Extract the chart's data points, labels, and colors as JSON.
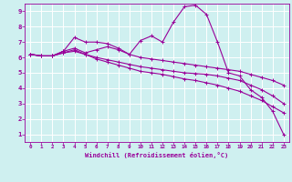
{
  "xlabel": "Windchill (Refroidissement éolien,°C)",
  "bg_color": "#cff0f0",
  "line_color": "#990099",
  "grid_color": "#ffffff",
  "xlim": [
    -0.5,
    23.5
  ],
  "ylim": [
    0.5,
    9.5
  ],
  "xticks": [
    0,
    1,
    2,
    3,
    4,
    5,
    6,
    7,
    8,
    9,
    10,
    11,
    12,
    13,
    14,
    15,
    16,
    17,
    18,
    19,
    20,
    21,
    22,
    23
  ],
  "yticks": [
    1,
    2,
    3,
    4,
    5,
    6,
    7,
    8,
    9
  ],
  "curve1_x": [
    0,
    1,
    2,
    3,
    4,
    5,
    6,
    7,
    8,
    9,
    10,
    11,
    12,
    13,
    14,
    15,
    16,
    17,
    18,
    19,
    20,
    21,
    22,
    23
  ],
  "curve1_y": [
    6.2,
    6.1,
    6.1,
    6.4,
    7.3,
    7.0,
    7.0,
    6.9,
    6.6,
    6.2,
    7.1,
    7.4,
    7.0,
    8.3,
    9.3,
    9.4,
    8.8,
    7.0,
    5.0,
    4.8,
    3.9,
    3.4,
    2.5,
    1.0
  ],
  "curve2_x": [
    0,
    1,
    2,
    3,
    4,
    5,
    6,
    7,
    8,
    9,
    10,
    11,
    12,
    13,
    14,
    15,
    16,
    17,
    18,
    19,
    20,
    21,
    22,
    23
  ],
  "curve2_y": [
    6.2,
    6.1,
    6.1,
    6.4,
    6.6,
    6.3,
    6.5,
    6.7,
    6.5,
    6.2,
    6.0,
    5.9,
    5.8,
    5.7,
    5.6,
    5.5,
    5.4,
    5.3,
    5.2,
    5.1,
    4.9,
    4.7,
    4.5,
    4.2
  ],
  "curve3_x": [
    0,
    1,
    2,
    3,
    4,
    5,
    6,
    7,
    8,
    9,
    10,
    11,
    12,
    13,
    14,
    15,
    16,
    17,
    18,
    19,
    20,
    21,
    22,
    23
  ],
  "curve3_y": [
    6.2,
    6.1,
    6.1,
    6.3,
    6.5,
    6.2,
    6.0,
    5.85,
    5.7,
    5.55,
    5.4,
    5.3,
    5.2,
    5.1,
    5.0,
    4.95,
    4.9,
    4.8,
    4.65,
    4.5,
    4.2,
    3.9,
    3.5,
    3.0
  ],
  "curve4_x": [
    0,
    1,
    2,
    3,
    4,
    5,
    6,
    7,
    8,
    9,
    10,
    11,
    12,
    13,
    14,
    15,
    16,
    17,
    18,
    19,
    20,
    21,
    22,
    23
  ],
  "curve4_y": [
    6.2,
    6.1,
    6.1,
    6.3,
    6.4,
    6.2,
    5.9,
    5.7,
    5.5,
    5.3,
    5.1,
    5.0,
    4.9,
    4.75,
    4.6,
    4.5,
    4.35,
    4.2,
    4.0,
    3.8,
    3.5,
    3.2,
    2.8,
    2.4
  ]
}
